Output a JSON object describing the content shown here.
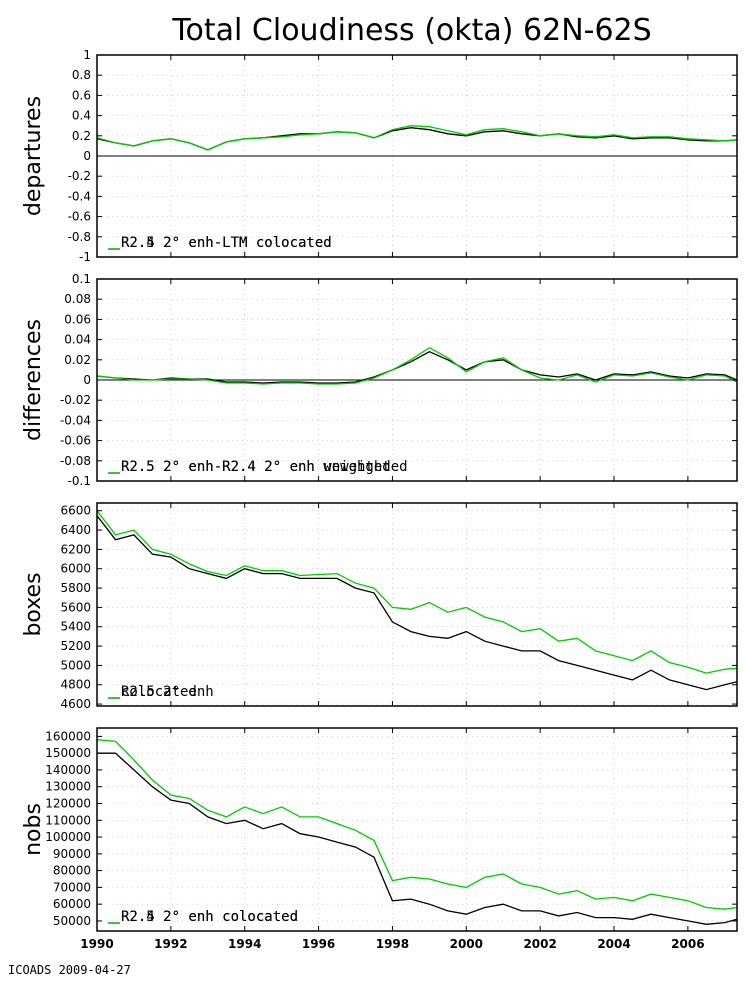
{
  "footer": "ICOADS 2009-04-27",
  "colors": {
    "series_a": "#000000",
    "series_b": "#00cc00",
    "grid": "#bbbbbb",
    "zero_line": "#000000"
  },
  "chart_data": [
    {
      "type": "line",
      "title": "Total Cloudiness (okta) 62N-62S",
      "ylabel": "departures",
      "xlim": [
        1990,
        2007.33
      ],
      "ylim": [
        -1,
        1
      ],
      "yticks": [
        -1,
        -0.8,
        -0.6,
        -0.4,
        -0.2,
        0,
        0.2,
        0.4,
        0.6,
        0.8,
        1
      ],
      "ytick_labels": [
        "-1",
        "-0.8",
        "-0.6",
        "-0.4",
        "-0.2",
        "0",
        "0.2",
        "0.4",
        "0.6",
        "0.8",
        "1"
      ],
      "zero_line": true,
      "x": [
        1990.0,
        1990.5,
        1991.0,
        1991.5,
        1992.0,
        1992.5,
        1993.0,
        1993.5,
        1994.0,
        1994.5,
        1995.0,
        1995.5,
        1996.0,
        1996.5,
        1997.0,
        1997.5,
        1998.0,
        1998.5,
        1999.0,
        1999.5,
        2000.0,
        2000.5,
        2001.0,
        2001.5,
        2002.0,
        2002.5,
        2003.0,
        2003.5,
        2004.0,
        2004.5,
        2005.0,
        2005.5,
        2006.0,
        2006.5,
        2007.0,
        2007.33
      ],
      "series": [
        {
          "name": "R2.4 2° enh-LTM colocated",
          "values": [
            0.17,
            0.13,
            0.1,
            0.15,
            0.17,
            0.13,
            0.06,
            0.14,
            0.17,
            0.18,
            0.2,
            0.22,
            0.22,
            0.24,
            0.23,
            0.18,
            0.25,
            0.28,
            0.26,
            0.22,
            0.2,
            0.24,
            0.25,
            0.22,
            0.2,
            0.22,
            0.19,
            0.18,
            0.2,
            0.17,
            0.18,
            0.18,
            0.16,
            0.15,
            0.15,
            0.16
          ]
        },
        {
          "name": "R2.5 2° enh-LTM colocated",
          "values": [
            0.18,
            0.13,
            0.1,
            0.15,
            0.17,
            0.13,
            0.06,
            0.14,
            0.17,
            0.18,
            0.19,
            0.21,
            0.22,
            0.24,
            0.23,
            0.18,
            0.26,
            0.3,
            0.29,
            0.25,
            0.21,
            0.26,
            0.27,
            0.24,
            0.2,
            0.22,
            0.2,
            0.19,
            0.21,
            0.18,
            0.19,
            0.19,
            0.17,
            0.16,
            0.15,
            0.16
          ]
        }
      ],
      "legend_placement": [
        "bottom-left",
        "bottom-right"
      ]
    },
    {
      "type": "line",
      "ylabel": "differences",
      "xlim": [
        1990,
        2007.33
      ],
      "ylim": [
        -0.1,
        0.1
      ],
      "yticks": [
        -0.1,
        -0.08,
        -0.06,
        -0.04,
        -0.02,
        0,
        0.02,
        0.04,
        0.06,
        0.08,
        0.1
      ],
      "ytick_labels": [
        "-0.1",
        "-0.08",
        "-0.06",
        "-0.04",
        "-0.02",
        "0",
        "0.02",
        "0.04",
        "0.06",
        "0.08",
        "0.1"
      ],
      "zero_line": true,
      "x": [
        1990.0,
        1990.5,
        1991.0,
        1991.5,
        1992.0,
        1992.5,
        1993.0,
        1993.5,
        1994.0,
        1994.5,
        1995.0,
        1995.5,
        1996.0,
        1996.5,
        1997.0,
        1997.5,
        1998.0,
        1998.5,
        1999.0,
        1999.5,
        2000.0,
        2000.5,
        2001.0,
        2001.5,
        2002.0,
        2002.5,
        2003.0,
        2003.5,
        2004.0,
        2004.5,
        2005.0,
        2005.5,
        2006.0,
        2006.5,
        2007.0,
        2007.33
      ],
      "series": [
        {
          "name": "R2.5 2° enh-R2.4 2° enh unweighted",
          "values": [
            0.004,
            0.002,
            0.001,
            0.0,
            0.002,
            0.001,
            0.001,
            -0.002,
            -0.002,
            -0.003,
            -0.002,
            -0.002,
            -0.003,
            -0.003,
            -0.002,
            0.003,
            0.01,
            0.018,
            0.028,
            0.02,
            0.01,
            0.018,
            0.02,
            0.01,
            0.005,
            0.003,
            0.006,
            0.0,
            0.006,
            0.005,
            0.008,
            0.004,
            0.002,
            0.006,
            0.005,
            0.0
          ]
        },
        {
          "name": "R2.5 2° enh-R2.4 2° enh weighted",
          "values": [
            0.004,
            0.002,
            0.0,
            0.0,
            0.001,
            0.001,
            0.0,
            -0.003,
            -0.003,
            -0.004,
            -0.003,
            -0.003,
            -0.004,
            -0.004,
            -0.003,
            0.002,
            0.01,
            0.02,
            0.032,
            0.022,
            0.008,
            0.018,
            0.022,
            0.01,
            0.002,
            0.0,
            0.005,
            -0.002,
            0.005,
            0.004,
            0.007,
            0.003,
            0.0,
            0.005,
            0.004,
            -0.002
          ]
        }
      ],
      "legend_placement": [
        "bottom-left",
        "bottom-right"
      ]
    },
    {
      "type": "line",
      "ylabel": "boxes",
      "xlim": [
        1990,
        2007.33
      ],
      "ylim": [
        4580,
        6680
      ],
      "yticks": [
        4600,
        4800,
        5000,
        5200,
        5400,
        5600,
        5800,
        6000,
        6200,
        6400,
        6600
      ],
      "ytick_labels": [
        "4600",
        "4800",
        "5000",
        "5200",
        "5400",
        "5600",
        "5800",
        "6000",
        "6200",
        "6400",
        "6600"
      ],
      "zero_line": false,
      "x": [
        1990.0,
        1990.5,
        1991.0,
        1991.5,
        1992.0,
        1992.5,
        1993.0,
        1993.5,
        1994.0,
        1994.5,
        1995.0,
        1995.5,
        1996.0,
        1996.5,
        1997.0,
        1997.5,
        1998.0,
        1998.5,
        1999.0,
        1999.5,
        2000.0,
        2000.5,
        2001.0,
        2001.5,
        2002.0,
        2002.5,
        2003.0,
        2003.5,
        2004.0,
        2004.5,
        2005.0,
        2005.5,
        2006.0,
        2006.5,
        2007.0,
        2007.33
      ],
      "series": [
        {
          "name": "colocated",
          "values": [
            6550,
            6300,
            6350,
            6150,
            6120,
            6000,
            5950,
            5900,
            6000,
            5950,
            5950,
            5900,
            5900,
            5900,
            5800,
            5750,
            5450,
            5350,
            5300,
            5280,
            5350,
            5250,
            5200,
            5150,
            5150,
            5050,
            5000,
            4950,
            4900,
            4850,
            4950,
            4850,
            4800,
            4750,
            4800,
            4830
          ]
        },
        {
          "name": "R2.5 2° enh",
          "values": [
            6600,
            6350,
            6400,
            6200,
            6150,
            6050,
            5970,
            5930,
            6030,
            5980,
            5980,
            5930,
            5940,
            5950,
            5850,
            5800,
            5600,
            5580,
            5650,
            5550,
            5600,
            5500,
            5450,
            5350,
            5380,
            5250,
            5280,
            5150,
            5100,
            5050,
            5150,
            5030,
            4980,
            4920,
            4960,
            4970
          ]
        }
      ],
      "legend_placement": [
        "bottom-left",
        "bottom-right"
      ]
    },
    {
      "type": "line",
      "ylabel": "nobs",
      "xlim": [
        1990,
        2007.33
      ],
      "ylim": [
        44000,
        165000
      ],
      "yticks": [
        50000,
        60000,
        70000,
        80000,
        90000,
        100000,
        110000,
        120000,
        130000,
        140000,
        150000,
        160000
      ],
      "ytick_labels": [
        "50000",
        "60000",
        "70000",
        "80000",
        "90000",
        "100000",
        "110000",
        "120000",
        "130000",
        "140000",
        "150000",
        "160000"
      ],
      "xticks": [
        1990,
        1992,
        1994,
        1996,
        1998,
        2000,
        2002,
        2004,
        2006
      ],
      "xtick_labels": [
        "1990",
        "1992",
        "1994",
        "1996",
        "1998",
        "2000",
        "2002",
        "2004",
        "2006"
      ],
      "zero_line": false,
      "x": [
        1990.0,
        1990.5,
        1991.0,
        1991.5,
        1992.0,
        1992.5,
        1993.0,
        1993.5,
        1994.0,
        1994.5,
        1995.0,
        1995.5,
        1996.0,
        1996.5,
        1997.0,
        1997.5,
        1998.0,
        1998.5,
        1999.0,
        1999.5,
        2000.0,
        2000.5,
        2001.0,
        2001.5,
        2002.0,
        2002.5,
        2003.0,
        2003.5,
        2004.0,
        2004.5,
        2005.0,
        2005.5,
        2006.0,
        2006.5,
        2007.0,
        2007.33
      ],
      "series": [
        {
          "name": "R2.4 2° enh colocated",
          "values": [
            150000,
            150000,
            140000,
            130000,
            122000,
            120000,
            112000,
            108000,
            110000,
            105000,
            108000,
            102000,
            100000,
            97000,
            94000,
            88000,
            62000,
            63000,
            60000,
            56000,
            54000,
            58000,
            60000,
            56000,
            56000,
            53000,
            55000,
            52000,
            52000,
            51000,
            54000,
            52000,
            50000,
            48000,
            49000,
            51000
          ]
        },
        {
          "name": "R2.5 2° enh colocated",
          "values": [
            158000,
            157000,
            146000,
            134000,
            125000,
            123000,
            116000,
            112000,
            118000,
            114000,
            118000,
            112000,
            112000,
            108000,
            104000,
            98000,
            74000,
            76000,
            75000,
            72000,
            70000,
            76000,
            78000,
            72000,
            70000,
            66000,
            68000,
            63000,
            64000,
            62000,
            66000,
            64000,
            62000,
            58000,
            57000,
            58000
          ]
        }
      ],
      "legend_placement": [
        "bottom-left",
        "bottom-right"
      ]
    }
  ]
}
